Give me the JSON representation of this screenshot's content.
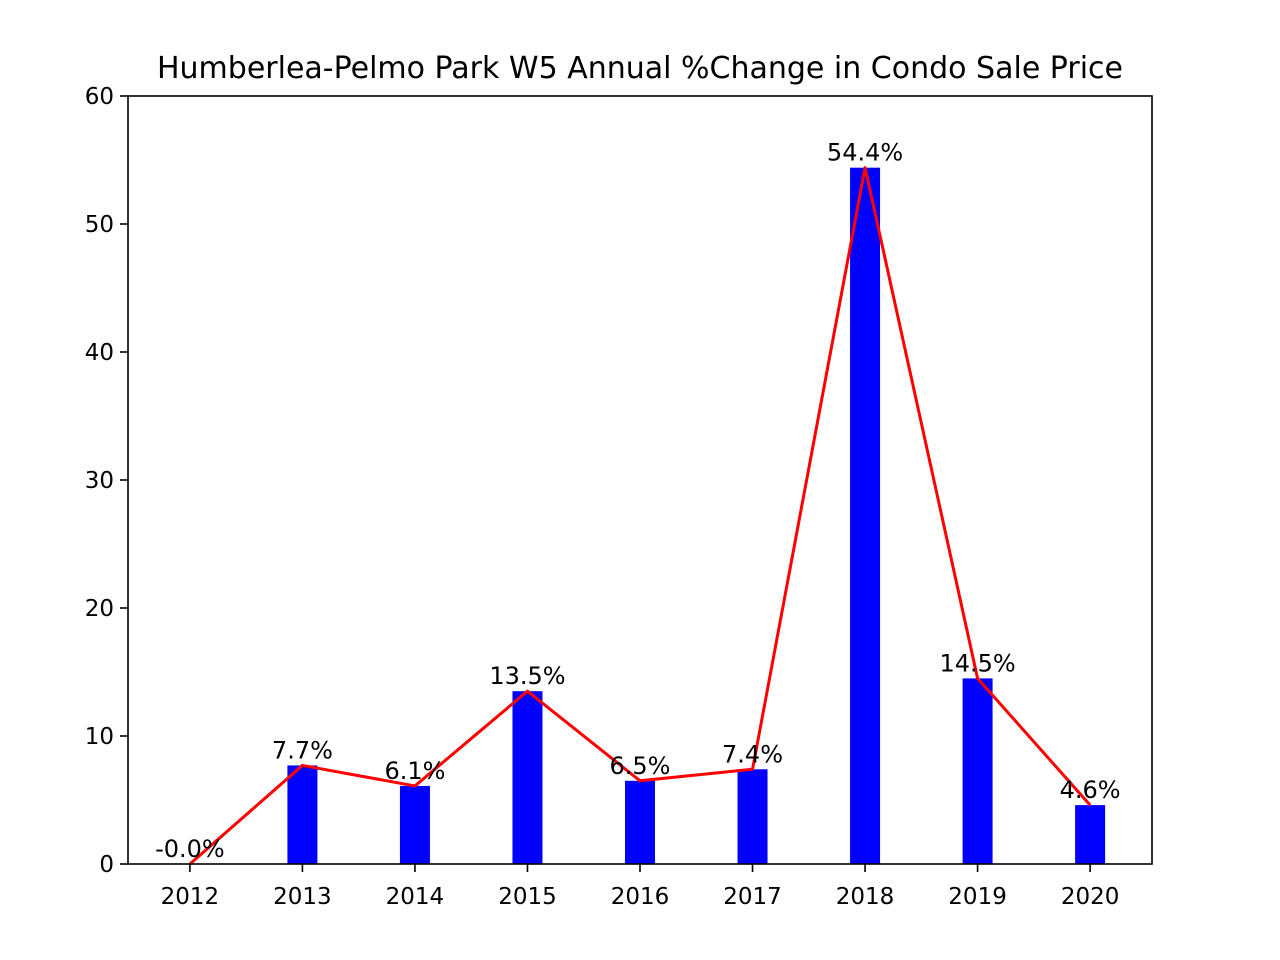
{
  "chart_data": {
    "type": "bar",
    "title": "Humberlea-Pelmo Park W5 Annual %Change in Condo Sale Price",
    "xlabel": "",
    "ylabel": "",
    "categories": [
      "2012",
      "2013",
      "2014",
      "2015",
      "2016",
      "2017",
      "2018",
      "2019",
      "2020"
    ],
    "values": [
      0.0,
      7.7,
      6.1,
      13.5,
      6.5,
      7.4,
      54.4,
      14.5,
      4.6
    ],
    "data_labels": [
      "-0.0%",
      "7.7%",
      "6.1%",
      "13.5%",
      "6.5%",
      "7.4%",
      "54.4%",
      "14.5%",
      "4.6%"
    ],
    "ylim": [
      0,
      60
    ],
    "yticks": [
      "0",
      "10",
      "20",
      "30",
      "40",
      "50",
      "60"
    ],
    "bar_color": "#0000ff",
    "line_overlay": {
      "color": "#ff0000",
      "follows": "values"
    },
    "grid": false,
    "legend": "none"
  }
}
